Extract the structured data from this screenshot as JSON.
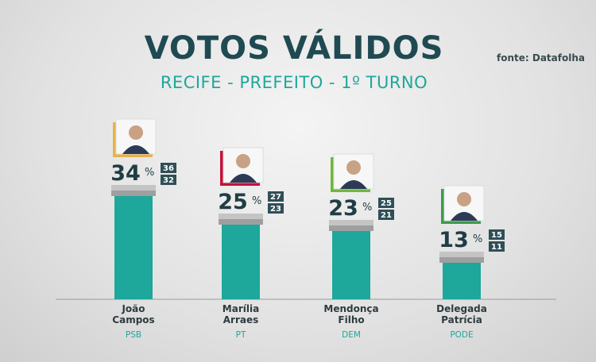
{
  "title": "VOTOS VÁLIDOS",
  "subtitle": "RECIFE - PREFEITO - 1º TURNO",
  "source": "fonte: Datafolha",
  "colors": {
    "bar": "#1ea79b",
    "title": "#1f4a52",
    "accent": "#1ea79b",
    "margin_box": "#2f4f56",
    "error_band": "#b5b5b5"
  },
  "chart_data": {
    "type": "bar",
    "title": "VOTOS VÁLIDOS",
    "subtitle": "RECIFE - PREFEITO - 1º TURNO",
    "unit": "%",
    "ylim": [
      0,
      40
    ],
    "categories": [
      "João Campos",
      "Marília Arraes",
      "Mendonça Filho",
      "Delegada Patrícia"
    ],
    "name_lines": [
      [
        "João",
        "Campos"
      ],
      [
        "Marília",
        "Arraes"
      ],
      [
        "Mendonça",
        "Filho"
      ],
      [
        "Delegada",
        "Patrícia"
      ]
    ],
    "parties": [
      "PSB",
      "PT",
      "DEM",
      "PODE"
    ],
    "values": [
      34,
      25,
      23,
      13
    ],
    "upper": [
      36,
      27,
      25,
      15
    ],
    "lower": [
      32,
      23,
      21,
      11
    ],
    "photo_frame_colors": [
      "#e8b24a",
      "#c4123a",
      "#6fb83a",
      "#3d9b4a"
    ]
  }
}
